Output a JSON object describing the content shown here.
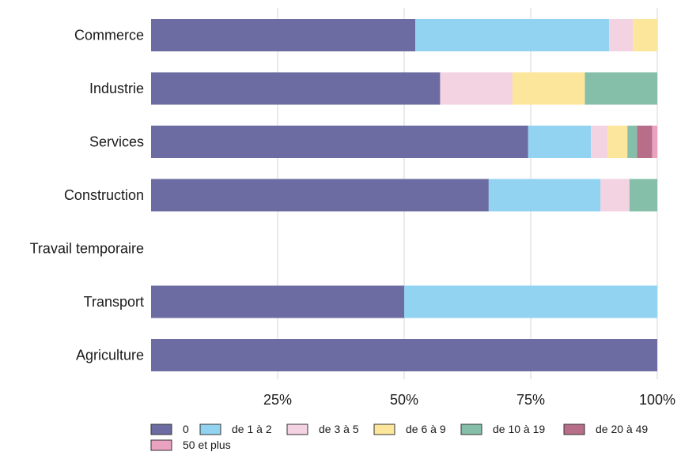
{
  "chart_data": {
    "type": "bar",
    "orientation": "horizontal",
    "stacked": true,
    "normalized": true,
    "categories": [
      "Commerce",
      "Industrie",
      "Services",
      "Construction",
      "Travail temporaire",
      "Transport",
      "Agriculture"
    ],
    "xlim": [
      0,
      100
    ],
    "x_ticks": [
      {
        "value": 25,
        "label": "25%"
      },
      {
        "value": 50,
        "label": "50%"
      },
      {
        "value": 75,
        "label": "75%"
      },
      {
        "value": 100,
        "label": "100%"
      }
    ],
    "grid": "vertical",
    "legend_position": "bottom-left",
    "series": [
      {
        "name": "0",
        "color": "#6c6ca2",
        "values": [
          52.2,
          57.1,
          74.5,
          66.7,
          0,
          50.0,
          100
        ]
      },
      {
        "name": "de 1 à 2",
        "color": "#93d3f2",
        "values": [
          38.3,
          0,
          12.4,
          22.1,
          0,
          50.0,
          0
        ]
      },
      {
        "name": "de 3 à 5",
        "color": "#f3d3e2",
        "values": [
          4.7,
          14.3,
          3.3,
          5.7,
          0,
          0,
          0
        ]
      },
      {
        "name": "de 6 à 9",
        "color": "#fce69b",
        "values": [
          4.8,
          14.3,
          3.9,
          0,
          0,
          0,
          0
        ]
      },
      {
        "name": "de 10 à 19",
        "color": "#86bfa9",
        "values": [
          0,
          14.3,
          1.9,
          5.5,
          0,
          0,
          0
        ]
      },
      {
        "name": "de 20 à 49",
        "color": "#b86e89",
        "values": [
          0,
          0,
          3.0,
          0,
          0,
          0,
          0
        ]
      },
      {
        "name": "50 et plus",
        "color": "#e9a3c1",
        "values": [
          0,
          0,
          1.0,
          0,
          0,
          0,
          0
        ]
      }
    ]
  }
}
